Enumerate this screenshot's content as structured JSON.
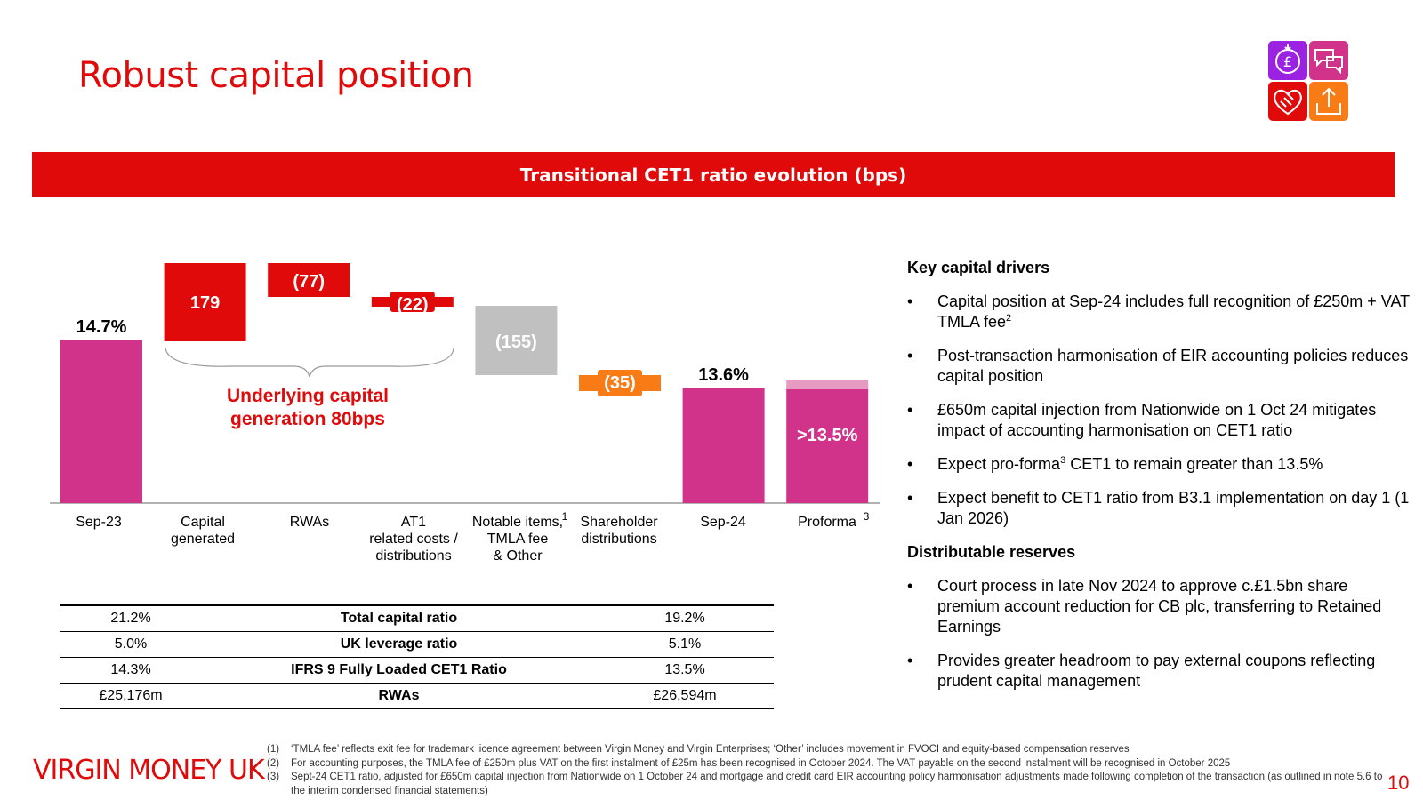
{
  "title": "Robust capital position",
  "banner": "Transitional CET1 ratio evolution (bps)",
  "icons": [
    "pound-money-icon",
    "speech-bubbles-icon",
    "heart-handshake-icon",
    "upload-share-icon"
  ],
  "colors": {
    "brand_red": "#e10a0a",
    "magenta": "#d1338a",
    "grey": "#c0c0c0",
    "orange": "#f97b16"
  },
  "chart_data": {
    "type": "waterfall",
    "title": "Transitional CET1 ratio evolution (bps)",
    "unit": "bps",
    "categories": [
      {
        "label": "Sep-23",
        "lines": [
          "Sep-23"
        ]
      },
      {
        "label": "Capital generated",
        "lines": [
          "Capital",
          "generated"
        ]
      },
      {
        "label": "RWAs",
        "lines": [
          "RWAs"
        ]
      },
      {
        "label": "AT1 related costs / distributions",
        "lines": [
          "AT1",
          "related costs /",
          "distributions"
        ]
      },
      {
        "label": "Notable items, TMLA fee & Other",
        "lines": [
          "Notable items,",
          "TMLA fee",
          "& Other"
        ],
        "footnote": "1"
      },
      {
        "label": "Shareholder distributions",
        "lines": [
          "Shareholder",
          "distributions"
        ]
      },
      {
        "label": "Sep-24",
        "lines": [
          "Sep-24"
        ]
      },
      {
        "label": "Proforma",
        "lines": [
          "Proforma"
        ],
        "footnote": "3"
      }
    ],
    "bars": [
      {
        "kind": "total",
        "value": 1470,
        "label": "14.7%",
        "color": "#d1338a"
      },
      {
        "kind": "delta",
        "value": 179,
        "label": "179",
        "color": "#e10a0a"
      },
      {
        "kind": "delta",
        "value": -77,
        "label": "(77)",
        "color": "#e10a0a"
      },
      {
        "kind": "delta",
        "value": -22,
        "label": "(22)",
        "color": "#e10a0a"
      },
      {
        "kind": "delta",
        "value": -155,
        "label": "(155)",
        "color": "#c0c0c0"
      },
      {
        "kind": "delta",
        "value": -35,
        "label": "(35)",
        "color": "#f97b16"
      },
      {
        "kind": "total",
        "value": 1360,
        "label": "13.6%",
        "color": "#d1338a"
      },
      {
        "kind": "total",
        "value": 1350,
        "label": ">13.5%",
        "color": "#d1338a"
      }
    ],
    "annotation": [
      "Underlying capital",
      "generation 80bps"
    ],
    "ylim": [
      0,
      1720
    ]
  },
  "metrics": [
    {
      "sep23": "21.2%",
      "label": "Total capital ratio",
      "sep24": "19.2%"
    },
    {
      "sep23": "5.0%",
      "label": "UK leverage ratio",
      "sep24": "5.1%"
    },
    {
      "sep23": "14.3%",
      "label": "IFRS 9 Fully Loaded CET1 Ratio",
      "sep24": "13.5%"
    },
    {
      "sep23": "£25,176m",
      "label": "RWAs",
      "sep24": "£26,594m"
    }
  ],
  "key_drivers": {
    "heading": "Key capital drivers",
    "bullet": "•",
    "items": {
      "b1_text": "Capital position at Sep-24 includes full recognition of £250m + VAT TMLA fee",
      "b1_sup": "2",
      "b2": "Post-transaction harmonisation of EIR accounting policies reduces capital position",
      "b3": "£650m capital injection from Nationwide on 1 Oct 24 mitigates impact of accounting harmonisation on CET1 ratio",
      "b4_pre": "Expect pro-forma",
      "b4_sup": "3",
      "b4_post": " CET1 to remain greater than 13.5%",
      "b5": "Expect benefit to CET1 ratio from B3.1 implementation on day 1 (1 Jan 2026)"
    }
  },
  "distributable": {
    "heading": "Distributable reserves",
    "items": [
      "Court process in late Nov 2024 to approve c.£1.5bn share premium account reduction for CB plc, transferring to Retained Earnings",
      "Provides greater headroom to pay external coupons reflecting prudent capital management"
    ]
  },
  "footnotes": [
    {
      "num": "(1)",
      "text": "‘TMLA fee’ reflects exit fee for trademark licence agreement between Virgin Money and Virgin Enterprises; ‘Other’ includes movement in FVOCI and equity-based compensation reserves"
    },
    {
      "num": "(2)",
      "text": "For accounting purposes, the TMLA fee of £250m plus VAT on the first instalment of £25m has been recognised in October 2024. The VAT payable on the second instalment will be recognised in October 2025"
    },
    {
      "num": "(3)",
      "text": "Sept-24 CET1 ratio, adjusted for £650m capital injection from Nationwide on 1 October 24 and mortgage and credit card EIR accounting policy harmonisation adjustments made following completion of the transaction (as outlined in note 5.6 to the interim condensed financial statements)"
    }
  ],
  "logo": "VIRGIN MONEY UK",
  "page_number": "10"
}
